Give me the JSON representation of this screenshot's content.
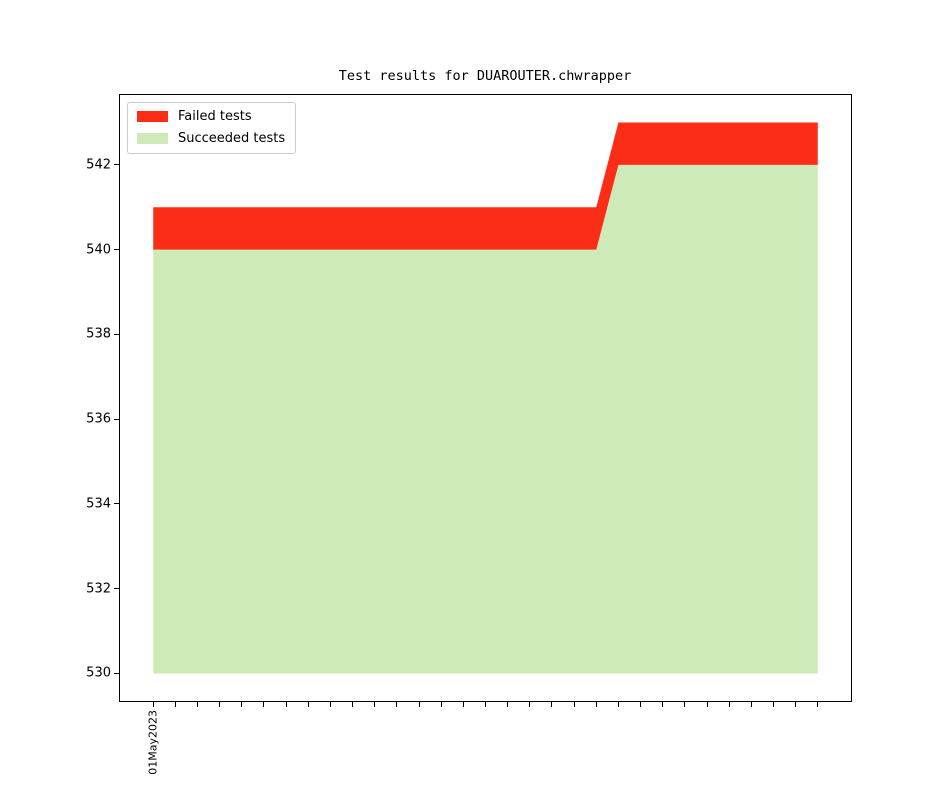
{
  "figure": {
    "background": "#ffffff",
    "axis_color": "#000000"
  },
  "chart_data": {
    "type": "area",
    "stacked": true,
    "title": "Test results for DUAROUTER.chwrapper",
    "grid": false,
    "legend_position": "upper-left",
    "x_count": 31,
    "x_tick_labels": {
      "0": "01May2023"
    },
    "yticks": [
      530,
      532,
      534,
      536,
      538,
      540,
      542
    ],
    "ylim": [
      529.35,
      543.65
    ],
    "xlim": [
      -1.5,
      31.5
    ],
    "baseline": 530,
    "stack_order": [
      1,
      0
    ],
    "series": [
      {
        "name": "Failed tests",
        "color": "#fb2d16",
        "values": [
          1,
          1,
          1,
          1,
          1,
          1,
          1,
          1,
          1,
          1,
          1,
          1,
          1,
          1,
          1,
          1,
          1,
          1,
          1,
          1,
          1,
          1,
          1,
          1,
          1,
          1,
          1,
          1,
          1,
          1,
          1
        ]
      },
      {
        "name": "Succeeded tests",
        "color": "#cdeab8",
        "values": [
          540,
          540,
          540,
          540,
          540,
          540,
          540,
          540,
          540,
          540,
          540,
          540,
          540,
          540,
          540,
          540,
          540,
          540,
          540,
          540,
          540,
          542,
          542,
          542,
          542,
          542,
          542,
          542,
          542,
          542,
          542
        ]
      }
    ]
  }
}
